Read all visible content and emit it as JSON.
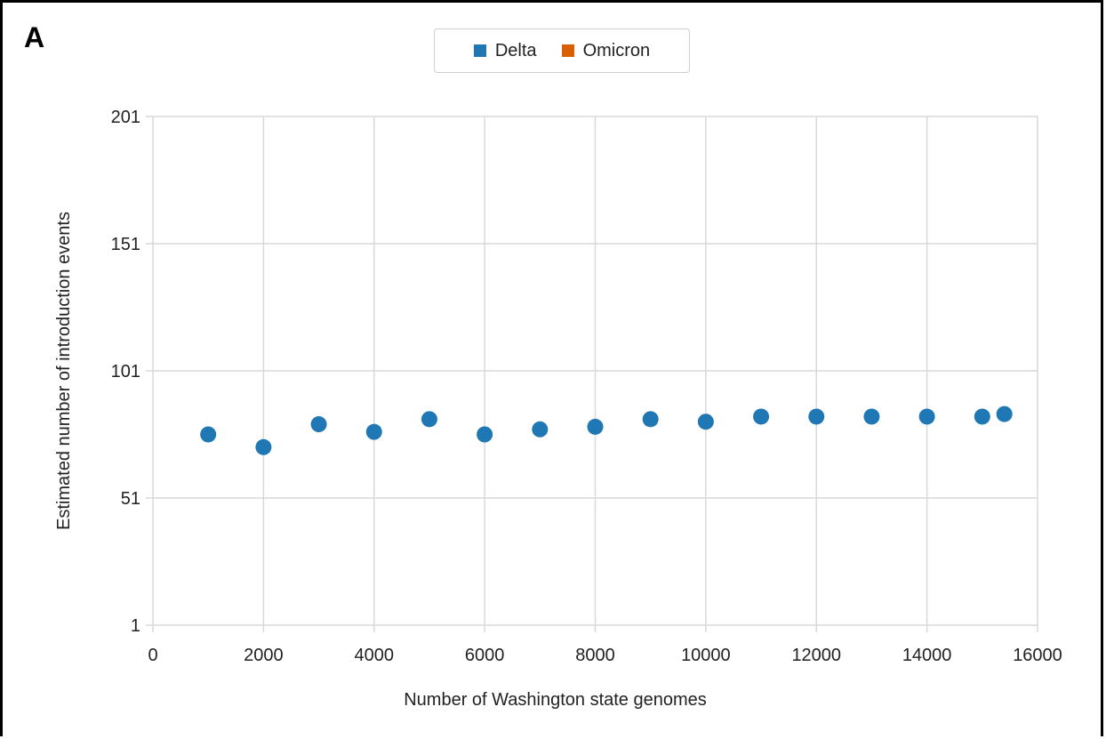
{
  "panel_label": "A",
  "colors": {
    "delta": "#1f77b4",
    "omicron": "#d95f02",
    "grid": "#d9d9d9"
  },
  "chart_data": {
    "type": "scatter",
    "title": "",
    "xlabel": "Number of Washington state genomes",
    "ylabel": "Estimated number of introduction events",
    "xlim": [
      0,
      16000
    ],
    "ylim": [
      1,
      201
    ],
    "x_ticks": [
      "0",
      "2000",
      "4000",
      "6000",
      "8000",
      "10000",
      "12000",
      "14000",
      "16000"
    ],
    "y_ticks": [
      "1",
      "51",
      "101",
      "151",
      "201"
    ],
    "grid": true,
    "legend_position": "top-center",
    "series": [
      {
        "name": "Delta",
        "color": "#1f77b4",
        "points": [
          {
            "x": 1000,
            "y": 76
          },
          {
            "x": 2000,
            "y": 71
          },
          {
            "x": 3000,
            "y": 80
          },
          {
            "x": 4000,
            "y": 77
          },
          {
            "x": 5000,
            "y": 82
          },
          {
            "x": 6000,
            "y": 76
          },
          {
            "x": 7000,
            "y": 78
          },
          {
            "x": 8000,
            "y": 79
          },
          {
            "x": 9000,
            "y": 82
          },
          {
            "x": 10000,
            "y": 81
          },
          {
            "x": 11000,
            "y": 83
          },
          {
            "x": 12000,
            "y": 83
          },
          {
            "x": 13000,
            "y": 83
          },
          {
            "x": 14000,
            "y": 83
          },
          {
            "x": 15000,
            "y": 83
          },
          {
            "x": 15400,
            "y": 84
          }
        ]
      },
      {
        "name": "Omicron",
        "color": "#d95f02",
        "points": []
      }
    ]
  }
}
